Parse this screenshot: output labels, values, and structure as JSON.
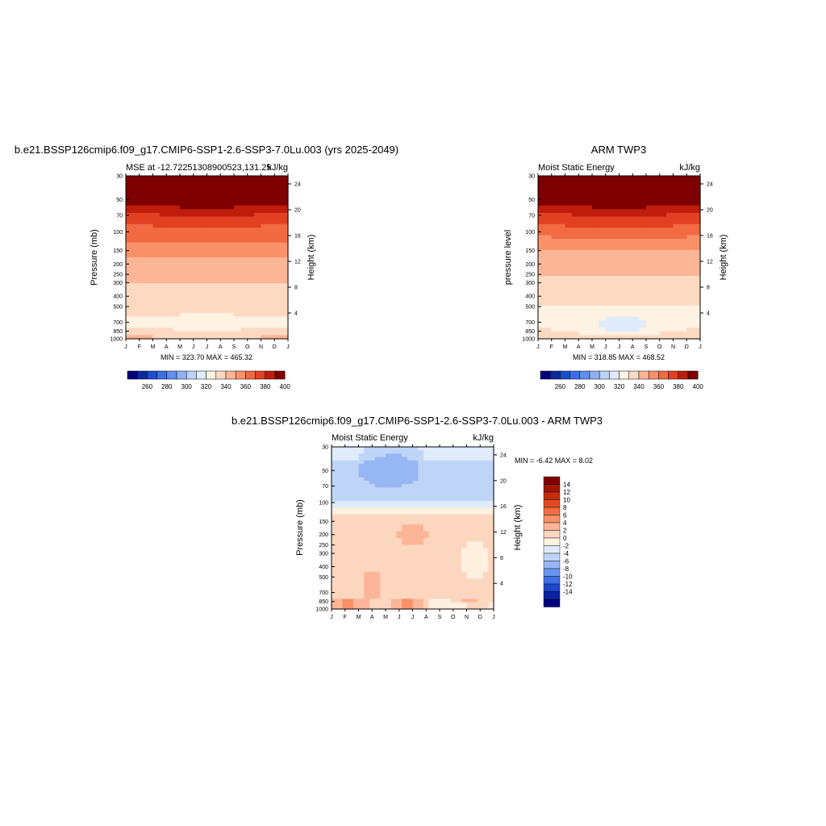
{
  "chart_data": [
    {
      "type": "heatmap",
      "title": "b.e21.BSSP126cmip6.f09_g17.CMIP6-SSP1-2.6-SSP3-7.0Lu.003 (yrs 2025-2049)",
      "subtitle_left": "MSE at -12.72251308900523,131.25",
      "subtitle_right": "kJ/kg",
      "ylabel": "Pressure (mb)",
      "ylabel_right": "Height (km)",
      "x_ticks": [
        "J",
        "F",
        "M",
        "A",
        "M",
        "J",
        "J",
        "A",
        "S",
        "O",
        "N",
        "D",
        "J"
      ],
      "y_ticks": [
        "30",
        "50",
        "70",
        "100",
        "150",
        "200",
        "250",
        "300",
        "400",
        "500",
        "700",
        "850",
        "1000"
      ],
      "y_ticks_right": [
        "24",
        "20",
        "16",
        "12",
        "8",
        "4"
      ],
      "stats": "MIN = 323.70  MAX = 465.32",
      "colorbar_ticks": [
        "260",
        "280",
        "300",
        "320",
        "340",
        "360",
        "380",
        "400"
      ],
      "profile_levels_mb": [
        30,
        50,
        60,
        70,
        85,
        100,
        150,
        200,
        300,
        400,
        500,
        700,
        850,
        1000
      ],
      "profile_values": [
        420,
        410,
        398,
        390,
        382,
        376,
        363,
        355,
        350,
        347,
        343,
        337,
        342,
        350
      ],
      "anomaly": {
        "center_month": 6.0,
        "center_mb": 700,
        "value": 330
      }
    },
    {
      "type": "heatmap",
      "title": "ARM TWP3",
      "subtitle_left": "Moist Static Energy",
      "subtitle_right": "kJ/kg",
      "ylabel": "pressure level",
      "ylabel_right": "Height (km)",
      "x_ticks": [
        "J",
        "F",
        "M",
        "A",
        "M",
        "J",
        "J",
        "A",
        "S",
        "O",
        "N",
        "D",
        "J"
      ],
      "y_ticks": [
        "30",
        "50",
        "70",
        "100",
        "150",
        "200",
        "250",
        "300",
        "400",
        "500",
        "700",
        "850",
        "1000"
      ],
      "y_ticks_right": [
        "24",
        "20",
        "16",
        "12",
        "8",
        "4"
      ],
      "stats": "MIN = 318.85  MAX = 468.52",
      "colorbar_ticks": [
        "260",
        "280",
        "300",
        "320",
        "340",
        "360",
        "380",
        "400"
      ],
      "profile_levels_mb": [
        30,
        50,
        60,
        70,
        85,
        100,
        150,
        200,
        300,
        400,
        500,
        700,
        850,
        1000
      ],
      "profile_values": [
        420,
        410,
        398,
        390,
        382,
        376,
        358,
        352,
        348,
        344,
        340,
        332,
        338,
        348
      ],
      "anomaly": {
        "center_month": 6.2,
        "center_mb": 720,
        "value": 326
      }
    },
    {
      "type": "heatmap",
      "title": "b.e21.BSSP126cmip6.f09_g17.CMIP6-SSP1-2.6-SSP3-7.0Lu.003 - ARM TWP3",
      "subtitle_left": "Moist Static Energy",
      "subtitle_right": "kJ/kg",
      "ylabel": "Pressure (mb)",
      "ylabel_right": "Height (km)",
      "x_ticks": [
        "J",
        "F",
        "M",
        "A",
        "M",
        "J",
        "J",
        "A",
        "S",
        "O",
        "N",
        "D",
        "J"
      ],
      "y_ticks": [
        "30",
        "50",
        "70",
        "100",
        "150",
        "200",
        "250",
        "300",
        "400",
        "500",
        "700",
        "850",
        "1000"
      ],
      "y_ticks_right": [
        "24",
        "20",
        "16",
        "12",
        "8",
        "4"
      ],
      "stats": "MIN =  -6.42 MAX =   8.02",
      "colorbar_ticks": [
        "14",
        "12",
        "10",
        "8",
        "6",
        "4",
        "2",
        "0",
        "-2",
        "-4",
        "-6",
        "-8",
        "-10",
        "-12",
        "-14"
      ]
    }
  ],
  "colorbar": {
    "full_colors": [
      "#00007f",
      "#0a2aa0",
      "#1c4fd0",
      "#3a6ee6",
      "#5e8ff0",
      "#8fb0f4",
      "#bcd2f8",
      "#dfebfb",
      "#fff3e4",
      "#fdd9c2",
      "#fcb596",
      "#fa9168",
      "#f26a42",
      "#e24022",
      "#bf1c0c",
      "#7f0000"
    ],
    "full_bounds": [
      250,
      260,
      270,
      280,
      290,
      300,
      310,
      320,
      330,
      340,
      350,
      360,
      370,
      380,
      390,
      400,
      410
    ]
  },
  "diff_colorbar": {
    "colors_top_to_bottom": [
      "#7f0000",
      "#a51505",
      "#c72b0f",
      "#e04a22",
      "#f06c42",
      "#f99068",
      "#fcb596",
      "#fdd6bf",
      "#fff0e0",
      "#e0ecfb",
      "#bfd5f8",
      "#97b6f4",
      "#6a95ef",
      "#3d6fe6",
      "#1c47cc",
      "#0a22a0",
      "#00007f"
    ]
  }
}
